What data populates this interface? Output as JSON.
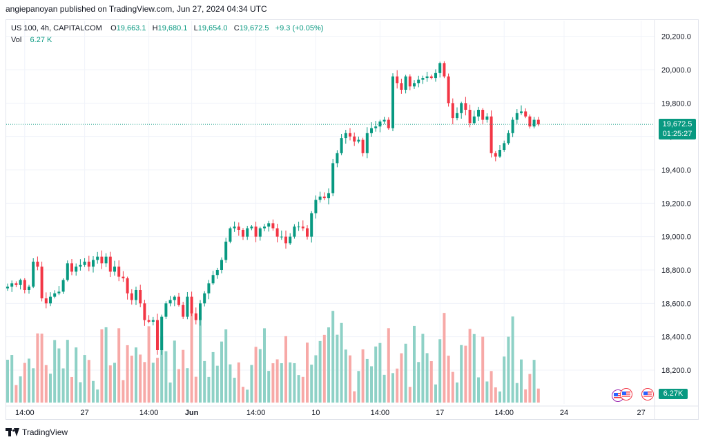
{
  "publisher_line": "angiepanoyan published on TradingView.com, Jun 27, 2024 04:34 UTC",
  "legend": {
    "symbol": "US 100, 4h, CAPITALCOM",
    "o_label": "O",
    "o": "19,663.1",
    "h_label": "H",
    "h": "19,680.1",
    "l_label": "L",
    "l": "19,654.0",
    "c_label": "C",
    "c": "19,672.5",
    "change": "+9.3 (+0.05%)",
    "vol_label": "Vol",
    "vol": "6.27 K"
  },
  "price_tag": {
    "price": "19,672.5",
    "countdown": "01:25:27"
  },
  "volume_tag": "6.27K",
  "footer_brand": "TradingView",
  "icons": [
    "tradingview-logo-icon",
    "us-flag-icon",
    "event-flag-icon"
  ],
  "colors": {
    "up": "#089981",
    "down": "#f23645",
    "vol_up": "#8ed1c6",
    "vol_down": "#f7a9a7",
    "grid": "#f0f3fa"
  },
  "chart_data": {
    "type": "candlestick",
    "y_ticks": [
      "20,200.0",
      "20,000.0",
      "19,800.0",
      "19,600.0",
      "19,400.0",
      "19,200.0",
      "19,000.0",
      "18,800.0",
      "18,600.0",
      "18,400.0",
      "18,200.0"
    ],
    "y_tick_values": [
      20200,
      20000,
      19800,
      19600,
      19400,
      19200,
      19000,
      18800,
      18600,
      18400,
      18200
    ],
    "ylim": [
      18000,
      20280
    ],
    "x_ticks": [
      {
        "label": "14:00",
        "index": 4,
        "bold": false
      },
      {
        "label": "27",
        "index": 18,
        "bold": false
      },
      {
        "label": "14:00",
        "index": 33,
        "bold": false
      },
      {
        "label": "Jun",
        "index": 43,
        "bold": true
      },
      {
        "label": "14:00",
        "index": 58,
        "bold": false
      },
      {
        "label": "10",
        "index": 72,
        "bold": false
      },
      {
        "label": "14:00",
        "index": 87,
        "bold": false
      },
      {
        "label": "17",
        "index": 101,
        "bold": false
      },
      {
        "label": "14:00",
        "index": 116,
        "bold": false
      },
      {
        "label": "24",
        "index": 130,
        "bold": false
      },
      {
        "label": "27",
        "index": 148,
        "bold": false
      }
    ],
    "last_price": 19672.5,
    "closes": [
      18700,
      18720,
      18710,
      18740,
      18680,
      18700,
      18850,
      18820,
      18630,
      18600,
      18640,
      18660,
      18670,
      18740,
      18840,
      18790,
      18820,
      18830,
      18850,
      18820,
      18860,
      18880,
      18840,
      18880,
      18790,
      18820,
      18760,
      18750,
      18660,
      18620,
      18680,
      18600,
      18500,
      18490,
      18500,
      18320,
      18520,
      18600,
      18620,
      18640,
      18590,
      18520,
      18640,
      18540,
      18500,
      18600,
      18660,
      18720,
      18770,
      18800,
      18860,
      18970,
      19050,
      19060,
      19040,
      19000,
      19050,
      19060,
      19000,
      19050,
      19060,
      19080,
      19050,
      19000,
      19000,
      18960,
      19000,
      19060,
      19060,
      19050,
      19000,
      19140,
      19220,
      19240,
      19230,
      19260,
      19440,
      19500,
      19590,
      19620,
      19600,
      19570,
      19580,
      19500,
      19620,
      19650,
      19660,
      19690,
      19700,
      19650,
      19960,
      19920,
      19880,
      19960,
      19900,
      19920,
      19940,
      19950,
      19960,
      19950,
      19980,
      20040,
      19960,
      19800,
      19710,
      19740,
      19800,
      19760,
      19680,
      19720,
      19760,
      19700,
      19720,
      19500,
      19480,
      19520,
      19560,
      19620,
      19700,
      19740,
      19750,
      19720,
      19660,
      19700,
      19672.5
    ],
    "volume_ylim": [
      0,
      6000
    ]
  }
}
